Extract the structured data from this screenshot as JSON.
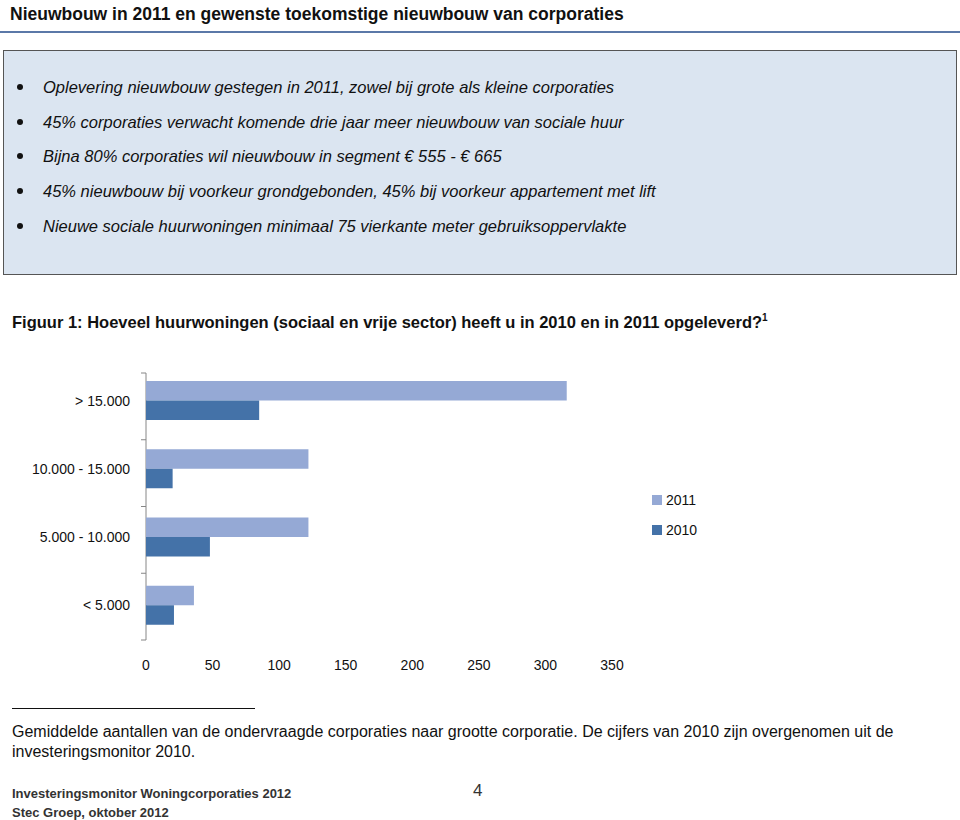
{
  "header": {
    "title": "Nieuwbouw in 2011 en gewenste toekomstige nieuwbouw van corporaties"
  },
  "summary": {
    "bullets": [
      "Oplevering nieuwbouw gestegen in 2011, zowel bij grote als kleine corporaties",
      "45% corporaties verwacht komende drie jaar meer nieuwbouw van sociale huur",
      "Bijna 80% corporaties wil nieuwbouw in segment € 555 - € 665",
      "45% nieuwbouw bij voorkeur grondgebonden, 45% bij voorkeur appartement met lift",
      "Nieuwe sociale huurwoningen minimaal 75 vierkante meter gebruiksoppervlakte"
    ]
  },
  "figure": {
    "title": "Figuur 1: Hoeveel huurwoningen (sociaal en vrije sector) heeft u in 2010 en in 2011 opgeleverd?",
    "note_ref": "1"
  },
  "chart_data": {
    "type": "bar",
    "orientation": "horizontal",
    "categories": [
      "> 15.000",
      "10.000 - 15.000",
      "5.000 - 10.000",
      "< 5.000"
    ],
    "series": [
      {
        "name": "2011",
        "color": "#95a9d5",
        "values": [
          316,
          122,
          122,
          36
        ]
      },
      {
        "name": "2010",
        "color": "#4472a8",
        "values": [
          85,
          20,
          48,
          21
        ]
      }
    ],
    "xlim": [
      0,
      350
    ],
    "xticks": [
      0,
      50,
      100,
      150,
      200,
      250,
      300,
      350
    ],
    "grid": false,
    "legend": "right"
  },
  "footnote": {
    "text": "Gemiddelde aantallen van de ondervraagde corporaties naar grootte corporatie. De cijfers van 2010 zijn overgenomen uit de investeringsmonitor 2010."
  },
  "footer": {
    "publication": "Investeringsmonitor Woningcorporaties 2012",
    "page": "4",
    "publisher": "Stec Groep, oktober 2012"
  }
}
